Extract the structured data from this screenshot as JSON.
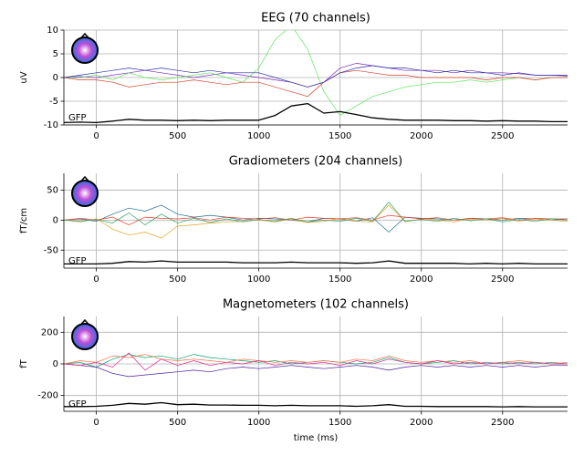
{
  "chart_data": [
    {
      "type": "line",
      "title": "EEG (70 channels)",
      "ylabel": "uV",
      "x": [
        -200,
        -100,
        0,
        100,
        200,
        300,
        400,
        500,
        600,
        700,
        800,
        900,
        1000,
        1100,
        1200,
        1300,
        1400,
        1500,
        1600,
        1700,
        1800,
        1900,
        2000,
        2100,
        2200,
        2300,
        2400,
        2500,
        2600,
        2700,
        2800,
        2900
      ],
      "xlim": [
        -200,
        2900
      ],
      "xticks": [
        0,
        500,
        1000,
        1500,
        2000,
        2500
      ],
      "ylim": [
        -10,
        10
      ],
      "yticks": [
        -10,
        -5,
        0,
        5,
        10
      ],
      "grid": true,
      "series": [
        {
          "color": "#7b2fbe",
          "values": [
            0,
            0.2,
            0,
            0.5,
            1,
            1.5,
            1,
            0.5,
            0,
            0.5,
            1,
            0.5,
            0,
            -0.5,
            -1,
            -2,
            -1,
            2,
            3,
            2.5,
            2,
            1.5,
            1.5,
            1.5,
            1,
            1.5,
            1,
            1,
            0.8,
            0.5,
            0.5,
            0.3
          ]
        },
        {
          "color": "#5ce65c",
          "values": [
            0,
            0,
            0.5,
            -0.5,
            1,
            0,
            -0.5,
            0,
            0.5,
            1,
            0,
            -1,
            2,
            8,
            11,
            6,
            -3,
            -8,
            -6,
            -4,
            -3,
            -2,
            -1.5,
            -1,
            -1,
            -0.5,
            -1,
            -0.5,
            0,
            -0.5,
            0,
            0
          ]
        },
        {
          "color": "#d6402e",
          "values": [
            0,
            -0.5,
            -0.5,
            -1,
            -2,
            -1.5,
            -1,
            -1,
            -0.5,
            -1,
            -1.5,
            -1,
            -1,
            -2,
            -3,
            -4,
            -1,
            1,
            1.5,
            1,
            0.5,
            0.5,
            0,
            0,
            0,
            0,
            -0.5,
            0,
            0,
            -0.5,
            0,
            0
          ]
        },
        {
          "color": "#2b2fa8",
          "values": [
            0,
            0.5,
            1,
            1.5,
            2,
            1.5,
            2,
            1.5,
            1,
            1.5,
            1,
            1,
            1,
            0,
            -1,
            -2,
            -1,
            1,
            2,
            2.5,
            2,
            2,
            1.5,
            1,
            1.5,
            1,
            1,
            0.5,
            1,
            0.5,
            0.5,
            0.5
          ]
        },
        {
          "name": "GFP",
          "color": "#000000",
          "values": [
            -9.5,
            -9.4,
            -9.5,
            -9.2,
            -8.8,
            -9,
            -9,
            -9.1,
            -9,
            -9.1,
            -9,
            -9,
            -9,
            -8,
            -6,
            -5.5,
            -7.5,
            -7.2,
            -7.8,
            -8.5,
            -8.8,
            -9,
            -9,
            -9,
            -9.1,
            -9.1,
            -9.2,
            -9.1,
            -9.2,
            -9.2,
            -9.3,
            -9.3
          ]
        }
      ]
    },
    {
      "type": "line",
      "title": "Gradiometers (204 channels)",
      "ylabel": "fT/cm",
      "x": [
        -200,
        -100,
        0,
        100,
        200,
        300,
        400,
        500,
        600,
        700,
        800,
        900,
        1000,
        1100,
        1200,
        1300,
        1400,
        1500,
        1600,
        1700,
        1800,
        1900,
        2000,
        2100,
        2200,
        2300,
        2400,
        2500,
        2600,
        2700,
        2800,
        2900
      ],
      "xlim": [
        -200,
        2900
      ],
      "xticks": [
        0,
        500,
        1000,
        1500,
        2000,
        2500
      ],
      "ylim": [
        -80,
        78
      ],
      "yticks": [
        -50,
        0,
        50
      ],
      "grid": true,
      "series": [
        {
          "color": "#1f6e8c",
          "values": [
            0,
            2,
            -2,
            10,
            20,
            15,
            25,
            10,
            5,
            8,
            5,
            0,
            3,
            2,
            0,
            -3,
            3,
            2,
            -2,
            4,
            -20,
            5,
            3,
            2,
            0,
            3,
            2,
            0,
            3,
            2,
            0,
            2
          ]
        },
        {
          "color": "#e6a020",
          "values": [
            0,
            -3,
            2,
            -15,
            -25,
            -20,
            -30,
            -10,
            -8,
            -5,
            -3,
            -2,
            0,
            -3,
            2,
            -4,
            -2,
            3,
            -2,
            -3,
            25,
            -3,
            2,
            0,
            -3,
            2,
            0,
            3,
            -2,
            2,
            0,
            -2
          ]
        },
        {
          "color": "#ef3b2c",
          "values": [
            0,
            3,
            0,
            5,
            -8,
            5,
            3,
            2,
            4,
            0,
            5,
            3,
            2,
            4,
            0,
            5,
            3,
            2,
            4,
            0,
            8,
            5,
            2,
            4,
            0,
            3,
            2,
            4,
            0,
            3,
            2,
            2
          ]
        },
        {
          "color": "#2ca25f",
          "values": [
            0,
            -2,
            1,
            -5,
            12,
            -8,
            10,
            -5,
            3,
            -4,
            2,
            -3,
            1,
            -2,
            3,
            -3,
            0,
            -2,
            3,
            -2,
            30,
            -2,
            1,
            -2,
            3,
            -1,
            2,
            -3,
            1,
            -2,
            2,
            0
          ]
        },
        {
          "name": "GFP",
          "color": "#000000",
          "values": [
            -73,
            -73,
            -73,
            -72,
            -69,
            -70,
            -68,
            -70,
            -70,
            -70,
            -70,
            -71,
            -71,
            -71,
            -70,
            -71,
            -71,
            -71,
            -72,
            -71,
            -68,
            -72,
            -72,
            -72,
            -72,
            -73,
            -72,
            -73,
            -72,
            -73,
            -73,
            -73
          ]
        }
      ]
    },
    {
      "type": "line",
      "title": "Magnetometers (102 channels)",
      "ylabel": "fT",
      "xlabel": "time (ms)",
      "x": [
        -200,
        -100,
        0,
        100,
        200,
        300,
        400,
        500,
        600,
        700,
        800,
        900,
        1000,
        1100,
        1200,
        1300,
        1400,
        1500,
        1600,
        1700,
        1800,
        1900,
        2000,
        2100,
        2200,
        2300,
        2400,
        2500,
        2600,
        2700,
        2800,
        2900
      ],
      "xlim": [
        -200,
        2900
      ],
      "xticks": [
        0,
        500,
        1000,
        1500,
        2000,
        2500
      ],
      "ylim": [
        -300,
        300
      ],
      "yticks": [
        -200,
        0,
        200
      ],
      "grid": true,
      "series": [
        {
          "color": "#00a86b",
          "values": [
            0,
            10,
            -20,
            30,
            60,
            40,
            50,
            30,
            60,
            40,
            30,
            20,
            10,
            20,
            0,
            10,
            20,
            10,
            0,
            10,
            40,
            10,
            0,
            10,
            20,
            0,
            10,
            0,
            10,
            0,
            10,
            0
          ]
        },
        {
          "color": "#4b1d9e",
          "values": [
            0,
            -10,
            -20,
            -60,
            -80,
            -70,
            -60,
            -50,
            -40,
            -50,
            -30,
            -20,
            -30,
            -20,
            -10,
            -20,
            -30,
            -20,
            -10,
            -20,
            -40,
            -20,
            -10,
            -20,
            -10,
            -20,
            -10,
            -20,
            -10,
            -20,
            -10,
            -10
          ]
        },
        {
          "color": "#ff6a3d",
          "values": [
            0,
            20,
            10,
            50,
            40,
            60,
            30,
            20,
            30,
            20,
            10,
            30,
            20,
            10,
            20,
            10,
            20,
            10,
            30,
            20,
            50,
            20,
            10,
            20,
            10,
            20,
            0,
            10,
            20,
            10,
            0,
            10
          ]
        },
        {
          "color": "#e0288c",
          "values": [
            0,
            -10,
            10,
            -20,
            70,
            -40,
            30,
            -10,
            20,
            -10,
            10,
            0,
            20,
            -10,
            10,
            0,
            10,
            -10,
            20,
            0,
            30,
            10,
            0,
            20,
            0,
            10,
            0,
            10,
            0,
            10,
            0,
            0
          ]
        },
        {
          "name": "GFP",
          "color": "#000000",
          "values": [
            -270,
            -270,
            -268,
            -262,
            -250,
            -255,
            -245,
            -258,
            -255,
            -260,
            -260,
            -262,
            -262,
            -265,
            -262,
            -265,
            -265,
            -265,
            -268,
            -265,
            -258,
            -268,
            -268,
            -270,
            -270,
            -270,
            -270,
            -272,
            -270,
            -272,
            -272,
            -272
          ]
        }
      ]
    }
  ]
}
